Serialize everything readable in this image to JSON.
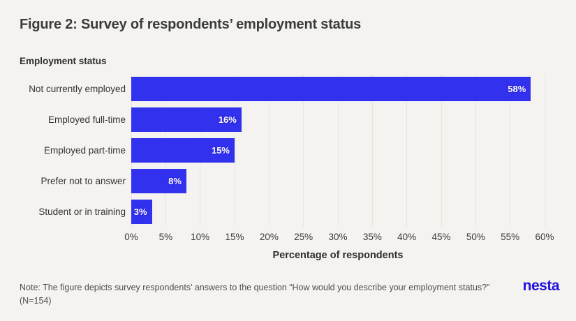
{
  "page": {
    "background": "#f4f3f0"
  },
  "header": {
    "title": "Figure 2: Survey of respondents’ employment status"
  },
  "chart": {
    "y_axis_label": "Employment status",
    "x_axis_label": "Percentage of respondents"
  },
  "chart_data": {
    "type": "bar",
    "orientation": "horizontal",
    "title": "Figure 2: Survey of respondents’ employment status",
    "ylabel": "Employment status",
    "xlabel": "Percentage of respondents",
    "categories": [
      "Not currently employed",
      "Employed full-time",
      "Employed part-time",
      "Prefer not to answer",
      "Student or in training"
    ],
    "values": [
      58,
      16,
      15,
      8,
      3
    ],
    "value_labels": [
      "58%",
      "16%",
      "15%",
      "8%",
      "3%"
    ],
    "xlim": [
      0,
      60
    ],
    "x_ticks": [
      "0%",
      "5%",
      "10%",
      "15%",
      "20%",
      "25%",
      "30%",
      "35%",
      "40%",
      "45%",
      "50%",
      "55%",
      "60%"
    ],
    "grid": true,
    "legend": false,
    "bar_color": "#3231ed",
    "value_label_color": "#ffffff"
  },
  "note": {
    "text": "Note: The figure depicts survey respondents’ answers to the question “How would you describe your employment status?” (N=154)"
  },
  "logo": {
    "text": "nesta",
    "color": "#2113db"
  }
}
